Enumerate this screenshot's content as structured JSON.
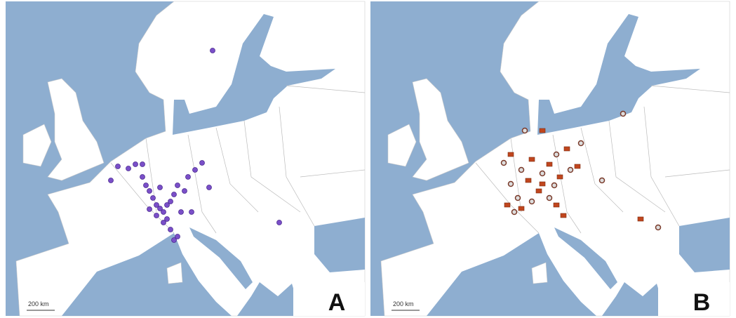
{
  "panels": [
    {
      "label": "A",
      "scale": "200 km"
    },
    {
      "label": "B",
      "scale": "200 km"
    }
  ]
}
